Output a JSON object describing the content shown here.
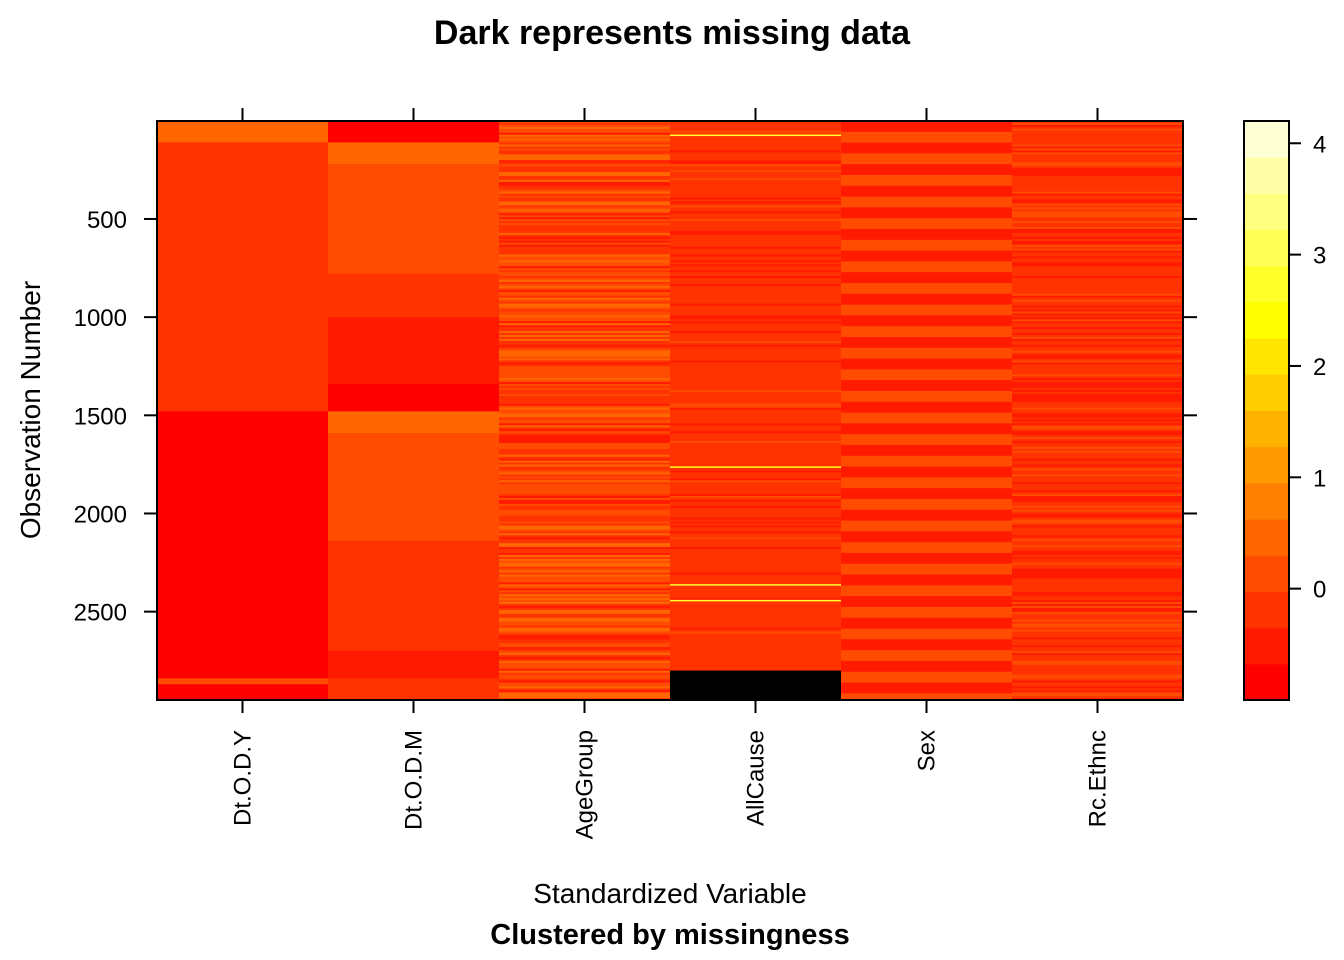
{
  "chart_data": {
    "type": "heatmap",
    "title": "Dark represents missing data",
    "xlabel": "Standardized Variable",
    "subtitle": "Clustered by missingness",
    "ylabel": "Observation Number",
    "variables": [
      "Dt.O.D.Y",
      "Dt.O.D.M",
      "AgeGroup",
      "AllCause",
      "Sex",
      "Rc.Ethnc"
    ],
    "y_ticks": [
      500,
      1000,
      1500,
      2000,
      2500
    ],
    "ylim": [
      1,
      2950
    ],
    "n_observations": 2950,
    "colorbar": {
      "range": [
        -1,
        4.2
      ],
      "ticks": [
        0,
        1,
        2,
        3,
        4
      ],
      "levels": 16,
      "colors": [
        "#FF0000",
        "#FF1A00",
        "#FF3300",
        "#FF4C00",
        "#FF6600",
        "#FF7F00",
        "#FF9900",
        "#FFB200",
        "#FFCC00",
        "#FFE500",
        "#FFFF00",
        "#FFFF2A",
        "#FFFF55",
        "#FFFF80",
        "#FFFFAA",
        "#FFFFD5"
      ],
      "missing_color": "#000000"
    },
    "columns": [
      {
        "name": "Dt.O.D.Y",
        "pattern": "blocks",
        "segments": [
          {
            "from": 1,
            "to": 110,
            "value": 0.35
          },
          {
            "from": 110,
            "to": 1480,
            "value": -0.1
          },
          {
            "from": 1480,
            "to": 2840,
            "value": -0.75
          },
          {
            "from": 2840,
            "to": 2870,
            "value": 0.05
          },
          {
            "from": 2870,
            "to": 2950,
            "value": -0.75
          }
        ]
      },
      {
        "name": "Dt.O.D.M",
        "pattern": "blocks",
        "segments": [
          {
            "from": 1,
            "to": 110,
            "value": -0.75
          },
          {
            "from": 110,
            "to": 220,
            "value": 0.45
          },
          {
            "from": 220,
            "to": 440,
            "value": 0.2
          },
          {
            "from": 440,
            "to": 780,
            "value": 0.05
          },
          {
            "from": 780,
            "to": 1000,
            "value": -0.15
          },
          {
            "from": 1000,
            "to": 1340,
            "value": -0.4
          },
          {
            "from": 1340,
            "to": 1480,
            "value": -0.75
          },
          {
            "from": 1480,
            "to": 1590,
            "value": 0.45
          },
          {
            "from": 1590,
            "to": 1800,
            "value": 0.25
          },
          {
            "from": 1800,
            "to": 2140,
            "value": 0.05
          },
          {
            "from": 2140,
            "to": 2360,
            "value": -0.15
          },
          {
            "from": 2360,
            "to": 2700,
            "value": -0.35
          },
          {
            "from": 2700,
            "to": 2840,
            "value": -0.6
          },
          {
            "from": 2840,
            "to": 2950,
            "value": -0.2
          }
        ]
      },
      {
        "name": "AgeGroup",
        "pattern": "stripes",
        "base_value": 0.0,
        "spread": 0.55
      },
      {
        "name": "AllCause",
        "pattern": "stripes",
        "base_value": -0.2,
        "spread": 0.2,
        "highlights": [
          70,
          1760,
          2360,
          2440
        ],
        "missing": [
          {
            "from": 2800,
            "to": 2950
          }
        ]
      },
      {
        "name": "Sex",
        "pattern": "bands",
        "values": [
          -0.55,
          0.1
        ]
      },
      {
        "name": "Rc.Ethnc",
        "pattern": "stripes",
        "base_value": -0.2,
        "spread": 0.3
      }
    ]
  }
}
